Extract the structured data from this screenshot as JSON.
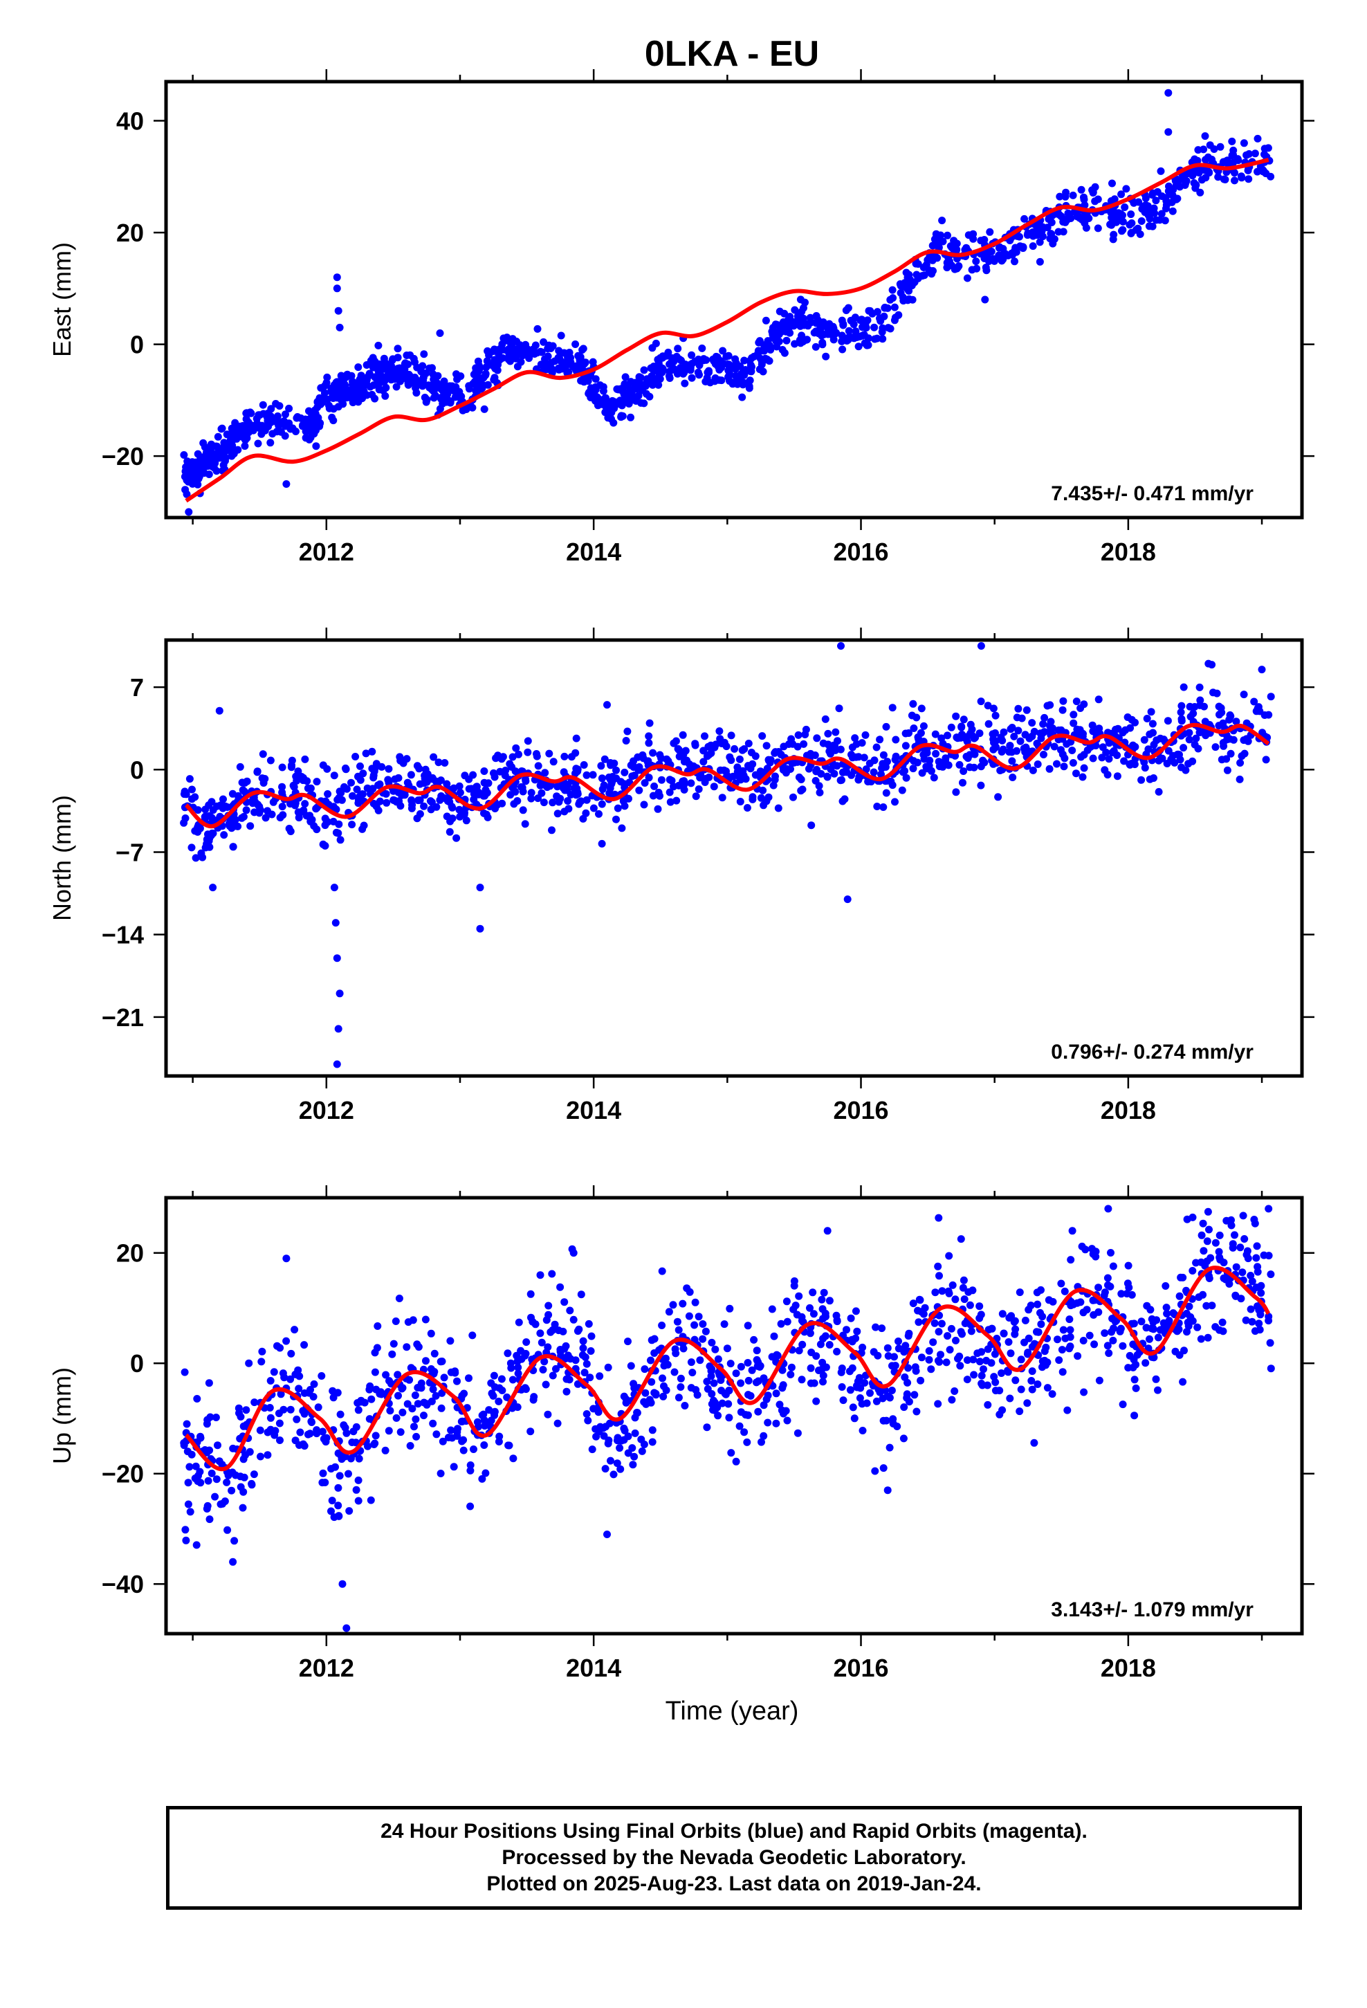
{
  "chart_data": {
    "type": "scatter",
    "title": "0LKA - EU",
    "xlabel": "Time (year)",
    "x_range": [
      2010.8,
      2019.3
    ],
    "x_ticks": [
      "2012",
      "2014",
      "2016",
      "2018"
    ],
    "x_tick_values": [
      2012,
      2014,
      2016,
      2018
    ],
    "grid": false,
    "legend": "none",
    "dot_color": "#0000ff",
    "fit_color": "#ff0000",
    "panels": [
      {
        "id": "east",
        "ylabel": "East (mm)",
        "ylim": [
          -31,
          47
        ],
        "y_ticks": [
          "40",
          "20",
          "0",
          "−20"
        ],
        "y_tick_values": [
          40,
          20,
          0,
          -20
        ],
        "rate_label": "7.435+/- 0.471 mm/yr",
        "data_extent": [
          2010.93,
          2019.07
        ],
        "fit_curve": {
          "x": [
            2010.95,
            2011.2,
            2011.45,
            2011.75,
            2012.0,
            2012.25,
            2012.5,
            2012.75,
            2013.0,
            2013.25,
            2013.5,
            2013.75,
            2014.0,
            2014.25,
            2014.5,
            2014.75,
            2015.0,
            2015.25,
            2015.5,
            2015.75,
            2016.0,
            2016.25,
            2016.5,
            2016.75,
            2017.0,
            2017.25,
            2017.5,
            2017.75,
            2018.0,
            2018.25,
            2018.5,
            2018.75,
            2019.05
          ],
          "y": [
            -28,
            -24,
            -20,
            -21,
            -19,
            -16,
            -13,
            -13.5,
            -11,
            -8,
            -5,
            -6,
            -4.5,
            -1,
            2,
            1.5,
            4,
            7.5,
            9.5,
            9,
            10,
            13,
            16.5,
            16,
            18,
            21.5,
            24.5,
            24,
            26,
            29,
            32,
            31.5,
            33
          ]
        },
        "daily_positions": [
          {
            "x": [
              2010.93,
              2011.05,
              2011.15,
              2011.25,
              2011.35,
              2011.5,
              2011.7,
              2011.9,
              2012.0,
              2012.1,
              2012.2,
              2012.3,
              2012.4,
              2012.5,
              2012.6,
              2012.75,
              2012.9,
              2013.05,
              2013.2,
              2013.35,
              2013.5,
              2013.7,
              2013.9,
              2014.0,
              2014.15,
              2014.3,
              2014.45,
              2014.6,
              2014.8,
              2015.0,
              2015.15,
              2015.3,
              2015.45,
              2015.6,
              2015.8,
              2016.0,
              2016.2,
              2016.4,
              2016.6,
              2016.8,
              2017.0,
              2017.2,
              2017.4,
              2017.6,
              2017.8,
              2018.0,
              2018.2,
              2018.4,
              2018.6,
              2018.8,
              2019.07
            ],
            "y": [
              -25,
              -22,
              -20,
              -19,
              -15,
              -14,
              -14,
              -14.5,
              -9,
              -8,
              -8,
              -6,
              -5,
              -5,
              -5,
              -7,
              -9,
              -10,
              -5,
              -1,
              -1,
              -3,
              -3,
              -8,
              -11,
              -9,
              -5,
              -3,
              -4,
              -5,
              -6,
              -1,
              3,
              4,
              2,
              2,
              5,
              12,
              17,
              16,
              16,
              19,
              21,
              24,
              24,
              23,
              24,
              29,
              32,
              32,
              33
            ],
            "spread": 1.8,
            "per_segment": 30
          }
        ],
        "outliers": [
          {
            "x": 2012.08,
            "y": 12
          },
          {
            "x": 2012.08,
            "y": 10
          },
          {
            "x": 2012.09,
            "y": 6
          },
          {
            "x": 2012.1,
            "y": 3
          },
          {
            "x": 2018.3,
            "y": 45
          },
          {
            "x": 2018.3,
            "y": 38
          },
          {
            "x": 2011.7,
            "y": -25
          },
          {
            "x": 2012.85,
            "y": 2
          },
          {
            "x": 2010.97,
            "y": -30
          }
        ]
      },
      {
        "id": "north",
        "ylabel": "North (mm)",
        "ylim": [
          -26,
          11
        ],
        "y_ticks": [
          "7",
          "0",
          "−7",
          "−14",
          "−21"
        ],
        "y_tick_values": [
          7,
          0,
          -7,
          -14,
          -21
        ],
        "rate_label": "0.796+/- 0.274 mm/yr",
        "data_extent": [
          2010.93,
          2019.07
        ],
        "fit_curve": {
          "x": [
            2010.95,
            2011.15,
            2011.45,
            2011.7,
            2011.85,
            2012.15,
            2012.45,
            2012.7,
            2012.85,
            2013.15,
            2013.45,
            2013.7,
            2013.85,
            2014.15,
            2014.45,
            2014.7,
            2014.85,
            2015.15,
            2015.45,
            2015.7,
            2015.85,
            2016.15,
            2016.45,
            2016.7,
            2016.85,
            2017.15,
            2017.45,
            2017.7,
            2017.85,
            2018.15,
            2018.45,
            2018.7,
            2018.85,
            2019.05
          ],
          "y": [
            -3,
            -4.8,
            -2,
            -2.5,
            -2.2,
            -4,
            -1.5,
            -2,
            -1.5,
            -3.3,
            -0.5,
            -1,
            -0.7,
            -2.5,
            0.2,
            -0.4,
            0,
            -1.7,
            0.9,
            0.5,
            0.9,
            -0.8,
            2,
            1.5,
            2,
            0.1,
            2.8,
            2.3,
            2.8,
            1,
            3.7,
            3.2,
            3.7,
            2.2
          ]
        },
        "daily_positions": [
          {
            "x": [
              2010.93,
              2011.1,
              2011.25,
              2011.4,
              2011.6,
              2011.8,
              2012.0,
              2012.2,
              2012.4,
              2012.6,
              2012.8,
              2013.0,
              2013.2,
              2013.4,
              2013.6,
              2013.8,
              2014.0,
              2014.2,
              2014.4,
              2014.6,
              2014.8,
              2015.0,
              2015.2,
              2015.4,
              2015.6,
              2015.8,
              2016.0,
              2016.2,
              2016.4,
              2016.6,
              2016.8,
              2017.0,
              2017.2,
              2017.4,
              2017.6,
              2017.8,
              2018.0,
              2018.2,
              2018.4,
              2018.6,
              2018.8,
              2019.07
            ],
            "y": [
              -3,
              -5,
              -4,
              -2,
              -2.5,
              -2,
              -4,
              -2,
              -1,
              -1.5,
              -1.5,
              -3,
              -2,
              -0.5,
              -1,
              -1,
              -2,
              -1.5,
              0,
              0,
              1,
              0,
              -1,
              0.5,
              0.5,
              1,
              0,
              -0.5,
              2,
              2,
              2,
              2,
              2,
              2.5,
              2.5,
              2.5,
              2,
              1.5,
              3,
              3.5,
              3.5,
              4
            ],
            "spread": 1.5,
            "per_segment": 30
          }
        ],
        "outliers": [
          {
            "x": 2012.08,
            "y": -25
          },
          {
            "x": 2012.09,
            "y": -22
          },
          {
            "x": 2012.1,
            "y": -19
          },
          {
            "x": 2012.08,
            "y": -16
          },
          {
            "x": 2012.07,
            "y": -13
          },
          {
            "x": 2012.06,
            "y": -10
          },
          {
            "x": 2013.15,
            "y": -13.5
          },
          {
            "x": 2013.15,
            "y": -10
          },
          {
            "x": 2015.9,
            "y": -11
          },
          {
            "x": 2015.85,
            "y": 10.5
          },
          {
            "x": 2016.9,
            "y": 10.5
          },
          {
            "x": 2011.2,
            "y": 5
          },
          {
            "x": 2014.1,
            "y": 5.5
          },
          {
            "x": 2018.6,
            "y": 9
          },
          {
            "x": 2019.0,
            "y": 8.5
          },
          {
            "x": 2011.15,
            "y": -10
          }
        ]
      },
      {
        "id": "up",
        "ylabel": "Up (mm)",
        "ylim": [
          -49,
          30
        ],
        "y_ticks": [
          "20",
          "0",
          "−20",
          "−40"
        ],
        "y_tick_values": [
          20,
          0,
          -20,
          -40
        ],
        "rate_label": "3.143+/- 1.079 mm/yr",
        "data_extent": [
          2010.93,
          2019.07
        ],
        "fit_curve": {
          "x": [
            2010.95,
            2011.25,
            2011.6,
            2011.95,
            2012.2,
            2012.6,
            2012.95,
            2013.2,
            2013.6,
            2013.95,
            2014.2,
            2014.6,
            2014.95,
            2015.2,
            2015.6,
            2015.95,
            2016.2,
            2016.6,
            2016.95,
            2017.2,
            2017.6,
            2017.95,
            2018.2,
            2018.6,
            2018.95,
            2019.05
          ],
          "y": [
            -13,
            -19,
            -5,
            -10,
            -16,
            -2,
            -6,
            -13,
            1,
            -4,
            -10,
            4,
            -1,
            -7,
            7,
            2,
            -4,
            10,
            5,
            -1,
            13,
            8,
            2,
            17,
            12,
            9
          ]
        },
        "daily_positions": [
          {
            "x": [
              2010.93,
              2011.1,
              2011.3,
              2011.5,
              2011.7,
              2011.9,
              2012.1,
              2012.3,
              2012.5,
              2012.7,
              2012.9,
              2013.1,
              2013.3,
              2013.5,
              2013.7,
              2013.9,
              2014.1,
              2014.3,
              2014.5,
              2014.7,
              2014.9,
              2015.1,
              2015.3,
              2015.5,
              2015.7,
              2015.9,
              2016.1,
              2016.3,
              2016.5,
              2016.7,
              2016.9,
              2017.1,
              2017.3,
              2017.5,
              2017.7,
              2017.9,
              2018.1,
              2018.3,
              2018.5,
              2018.7,
              2018.9,
              2019.07
            ],
            "y": [
              -16,
              -20,
              -20,
              -8,
              -6,
              -10,
              -17,
              -12,
              -3,
              -3,
              -6,
              -12,
              -9,
              0,
              4,
              2,
              -12,
              -10,
              2,
              4,
              0,
              -6,
              -5,
              4,
              5,
              2,
              -6,
              -5,
              6,
              8,
              4,
              -1,
              4,
              10,
              12,
              9,
              2,
              6,
              15,
              17,
              14,
              11
            ],
            "spread": 6,
            "per_segment": 30
          }
        ],
        "outliers": [
          {
            "x": 2012.15,
            "y": -48
          },
          {
            "x": 2012.12,
            "y": -40
          },
          {
            "x": 2011.3,
            "y": -36
          },
          {
            "x": 2014.1,
            "y": -31
          },
          {
            "x": 2011.7,
            "y": 19
          },
          {
            "x": 2013.85,
            "y": 20
          },
          {
            "x": 2015.75,
            "y": 24
          },
          {
            "x": 2017.85,
            "y": 28
          },
          {
            "x": 2019.05,
            "y": 28
          },
          {
            "x": 2016.2,
            "y": -23
          }
        ]
      }
    ]
  },
  "footer": {
    "lines": [
      "24 Hour Positions Using Final Orbits (blue) and Rapid Orbits (magenta).",
      "Processed by the Nevada Geodetic Laboratory.",
      "Plotted on 2025-Aug-23. Last data on 2019-Jan-24."
    ]
  }
}
